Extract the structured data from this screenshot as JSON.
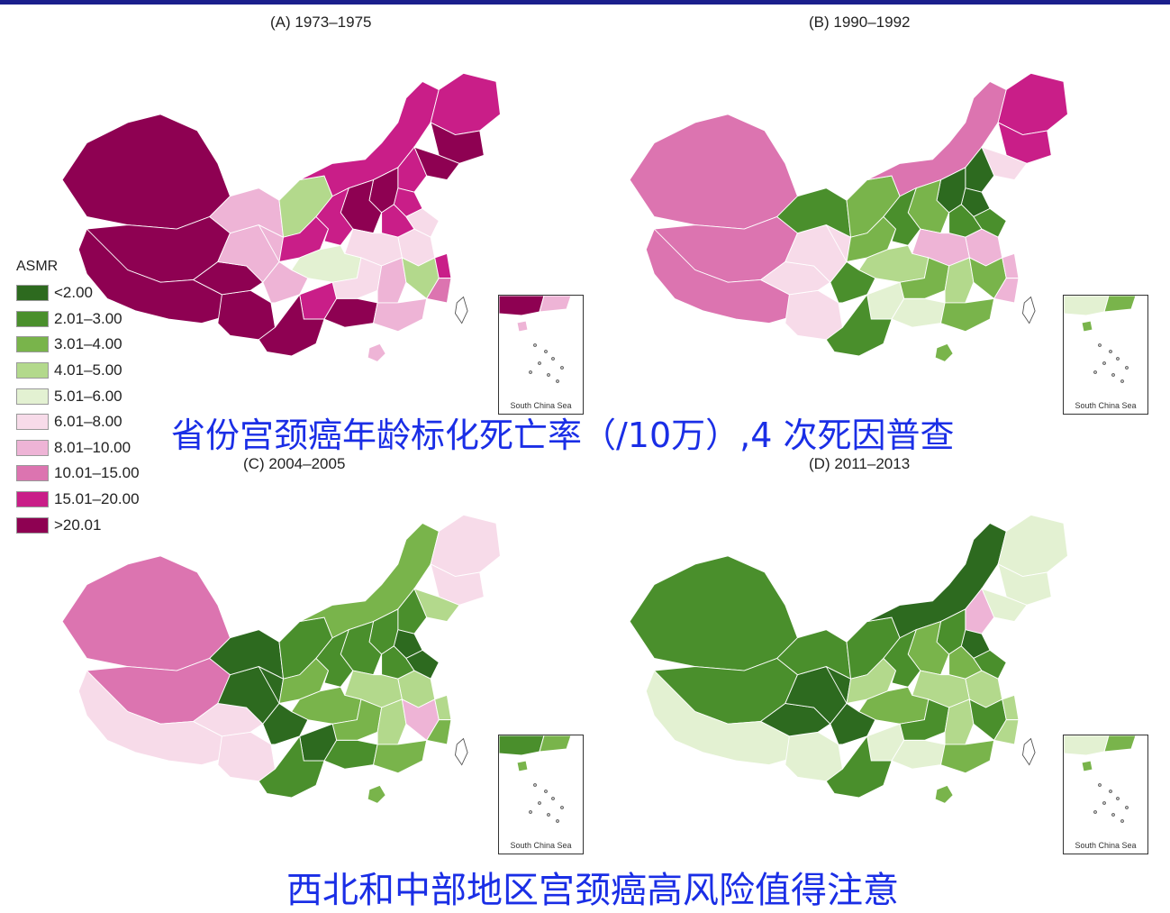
{
  "colors": {
    "accent_bar": "#1a1f8c",
    "caption_text": "#1a2ee6"
  },
  "legend": {
    "title": "ASMR",
    "items": [
      {
        "label": "<2.00",
        "color": "#2d6a1f"
      },
      {
        "label": "2.01–3.00",
        "color": "#4a8f2c"
      },
      {
        "label": "3.01–4.00",
        "color": "#79b44b"
      },
      {
        "label": "4.01–5.00",
        "color": "#b3d98c"
      },
      {
        "label": "5.01–6.00",
        "color": "#e3f1d2"
      },
      {
        "label": "6.01–8.00",
        "color": "#f7dbe9"
      },
      {
        "label": "8.01–10.00",
        "color": "#eeb4d6"
      },
      {
        "label": "10.01–15.00",
        "color": "#dc74b0"
      },
      {
        "label": "15.01–20.00",
        "color": "#c91e88"
      },
      {
        "label": ">20.01",
        "color": "#8e0152"
      }
    ]
  },
  "panels": [
    {
      "title": "(A) 1973–1975",
      "region_classes": [
        9,
        9,
        9,
        9,
        9,
        6,
        6,
        3,
        8,
        8,
        8,
        9,
        9,
        8,
        8,
        9,
        9,
        8,
        8,
        5,
        5,
        5,
        4,
        6,
        5,
        6,
        3,
        8,
        7,
        8,
        9,
        6,
        9
      ]
    },
    {
      "title": "(B) 1990–1992",
      "region_classes": [
        7,
        7,
        7,
        5,
        5,
        5,
        1,
        2,
        2,
        7,
        8,
        8,
        5,
        0,
        0,
        0,
        2,
        1,
        1,
        1,
        6,
        6,
        3,
        1,
        2,
        3,
        2,
        6,
        6,
        4,
        4,
        2,
        1
      ]
    },
    {
      "title": "(C) 2004–2005",
      "region_classes": [
        7,
        7,
        5,
        5,
        5,
        0,
        0,
        1,
        2,
        2,
        5,
        5,
        3,
        1,
        0,
        1,
        1,
        1,
        1,
        0,
        3,
        3,
        2,
        0,
        2,
        3,
        6,
        3,
        2,
        0,
        1,
        2,
        1
      ]
    },
    {
      "title": "(D) 2011–2013",
      "region_classes": [
        1,
        1,
        4,
        4,
        0,
        0,
        1,
        1,
        3,
        0,
        4,
        4,
        4,
        6,
        0,
        1,
        2,
        1,
        2,
        1,
        3,
        3,
        2,
        0,
        1,
        3,
        1,
        3,
        3,
        4,
        4,
        2,
        1
      ]
    }
  ],
  "inset_label": "South China Sea",
  "captions": {
    "main": "省份宫颈癌年龄标化死亡率（/10万）,4 次死因普查",
    "bottom": "西北和中部地区宫颈癌高风险值得注意"
  }
}
